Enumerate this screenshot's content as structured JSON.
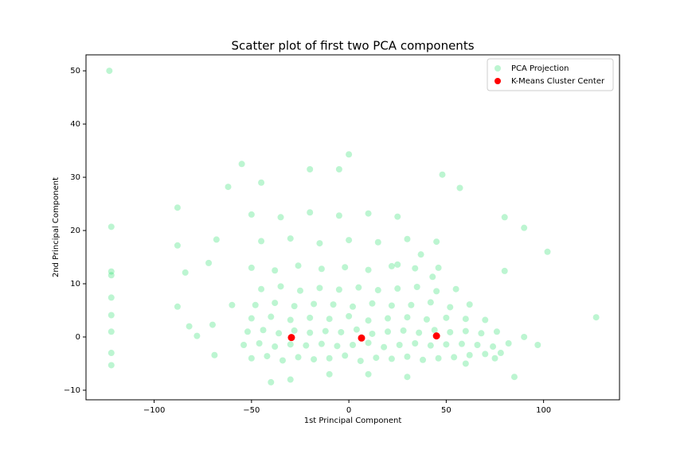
{
  "chart_data": {
    "type": "scatter",
    "title": "Scatter plot of first two PCA components",
    "x_label": "1st Principal Component",
    "y_label": "2nd Principal Component",
    "xlim": [
      -135,
      139
    ],
    "ylim": [
      -11.8,
      53
    ],
    "xticks": [
      {
        "value": -100,
        "label": "−100"
      },
      {
        "value": -50,
        "label": "−50"
      },
      0,
      50,
      100
    ],
    "yticks": [
      {
        "value": -10,
        "label": "−10"
      },
      0,
      10,
      20,
      30,
      40,
      50
    ],
    "legend": "upper right",
    "series": [
      {
        "name": "PCA Projection",
        "color": "#22dd66",
        "x": [
          -123,
          -122,
          -122,
          -122,
          -122,
          -122,
          -122,
          -122,
          -122,
          -88,
          -88,
          -84,
          -88,
          -82,
          -78,
          -70,
          -72,
          -68,
          -69,
          -62,
          -55,
          -45,
          -20,
          -5,
          0,
          48,
          57,
          80,
          90,
          102,
          127,
          85,
          90,
          97,
          80,
          25,
          37,
          43,
          -60,
          -40,
          -30,
          -10,
          10,
          30,
          60,
          75,
          -50,
          -42,
          -34,
          -26,
          -18,
          -10,
          -2,
          6,
          14,
          22,
          30,
          38,
          46,
          54,
          62,
          70,
          78,
          -54,
          -46,
          -38,
          -30,
          -22,
          -14,
          -6,
          2,
          10,
          18,
          26,
          34,
          42,
          50,
          58,
          66,
          74,
          82,
          -52,
          -44,
          -36,
          -28,
          -20,
          -12,
          -4,
          4,
          12,
          20,
          28,
          36,
          44,
          52,
          60,
          68,
          76,
          -50,
          -40,
          -30,
          -20,
          -10,
          0,
          10,
          20,
          30,
          40,
          50,
          60,
          70,
          -48,
          -38,
          -28,
          -18,
          -8,
          2,
          12,
          22,
          32,
          42,
          52,
          62,
          -45,
          -35,
          -25,
          -15,
          -5,
          5,
          15,
          25,
          35,
          45,
          55,
          -50,
          -38,
          -26,
          -14,
          -2,
          10,
          22,
          34,
          46,
          -45,
          -30,
          -15,
          0,
          15,
          30,
          45,
          -50,
          -35,
          -20,
          -5,
          10,
          25
        ],
        "values": [
          50,
          20.7,
          12.3,
          11.6,
          7.4,
          4.1,
          1.0,
          -3,
          -5.3,
          24.3,
          17.2,
          12.1,
          5.7,
          2,
          0.2,
          2.3,
          13.9,
          18.3,
          -3.4,
          28.2,
          32.5,
          29,
          31.5,
          31.5,
          34.3,
          30.5,
          28,
          22.5,
          20.5,
          16,
          3.7,
          -7.5,
          0,
          -1.5,
          12.4,
          13.6,
          15.5,
          11.3,
          6,
          -8.5,
          -8,
          -7,
          -7,
          -7.5,
          -5,
          -4,
          -4,
          -3.6,
          -4.4,
          -3.8,
          -4.2,
          -4,
          -3.5,
          -4.5,
          -3.9,
          -4.1,
          -3.7,
          -4.3,
          -4,
          -3.8,
          -3.4,
          -3.2,
          -3,
          -1.5,
          -1.2,
          -1.8,
          -1.4,
          -1.6,
          -1.3,
          -1.7,
          -1.5,
          -1.1,
          -1.9,
          -1.5,
          -1.2,
          -1.6,
          -1.4,
          -1.3,
          -1.5,
          -1.8,
          -1.2,
          1,
          1.3,
          0.7,
          1.2,
          0.8,
          1.1,
          0.9,
          1.4,
          0.6,
          1,
          1.2,
          0.8,
          1.3,
          0.9,
          1.1,
          0.7,
          1,
          3.5,
          3.8,
          3.2,
          3.6,
          3.4,
          3.9,
          3.1,
          3.5,
          3.7,
          3.3,
          3.6,
          3.4,
          3.2,
          6,
          6.4,
          5.8,
          6.2,
          6.1,
          5.7,
          6.3,
          5.9,
          6,
          6.5,
          5.6,
          6.1,
          9,
          9.5,
          8.7,
          9.2,
          8.9,
          9.3,
          8.8,
          9.1,
          9.4,
          8.6,
          9,
          13,
          12.5,
          13.4,
          12.8,
          13.1,
          12.6,
          13.3,
          12.9,
          13,
          18,
          18.5,
          17.6,
          18.2,
          17.8,
          18.4,
          17.9,
          23,
          22.5,
          23.4,
          22.8,
          23.2,
          22.6
        ]
      },
      {
        "name": "K-Means Cluster Center",
        "color": "#ff0000",
        "x": [
          -29.5,
          6.5,
          45
        ],
        "values": [
          -0.1,
          -0.2,
          0.2
        ]
      }
    ]
  }
}
